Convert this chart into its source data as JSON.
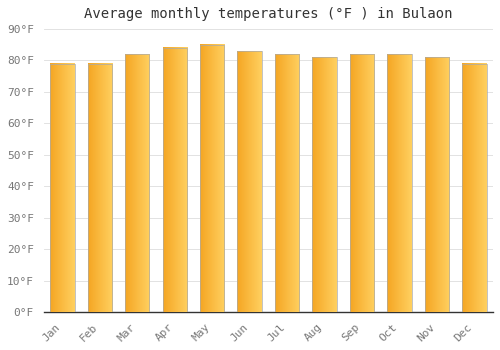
{
  "title": "Average monthly temperatures (°F ) in Bulaon",
  "months": [
    "Jan",
    "Feb",
    "Mar",
    "Apr",
    "May",
    "Jun",
    "Jul",
    "Aug",
    "Sep",
    "Oct",
    "Nov",
    "Dec"
  ],
  "values": [
    79,
    79,
    82,
    84,
    85,
    83,
    82,
    81,
    82,
    82,
    81,
    79
  ],
  "bar_color_left": "#F5A623",
  "bar_color_right": "#FFD060",
  "background_color": "#FFFFFF",
  "plot_bg_color": "#FFFFFF",
  "grid_color": "#DDDDDD",
  "ylim": [
    0,
    90
  ],
  "yticks": [
    0,
    10,
    20,
    30,
    40,
    50,
    60,
    70,
    80,
    90
  ],
  "ytick_labels": [
    "0°F",
    "10°F",
    "20°F",
    "30°F",
    "40°F",
    "50°F",
    "60°F",
    "70°F",
    "80°F",
    "90°F"
  ],
  "title_fontsize": 10,
  "tick_fontsize": 8,
  "bar_edge_color": "#AAAAAA",
  "bar_edge_width": 0.5,
  "bar_width": 0.65
}
